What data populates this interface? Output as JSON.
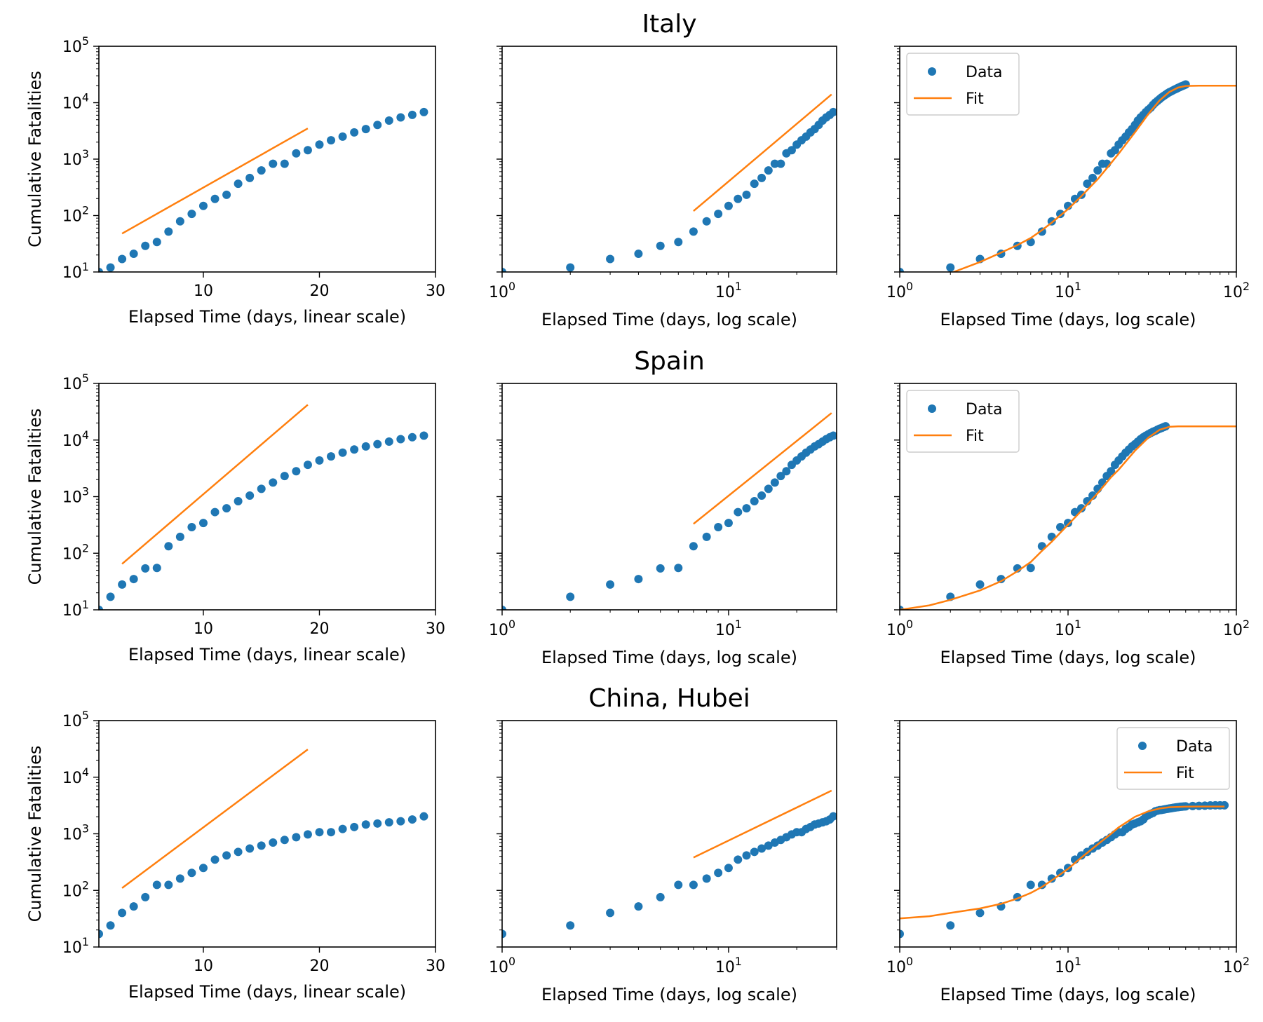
{
  "row_titles": [
    "Italy",
    "Spain",
    "China, Hubei"
  ],
  "labels": {
    "ylabel": "Cumulative Fatalities",
    "xlabel_linear": "Elapsed Time (days, linear scale)",
    "xlabel_log": "Elapsed Time (days, log scale)",
    "legend_data": "Data",
    "legend_fit": "Fit"
  },
  "colors": {
    "data": "#1f77b4",
    "fit": "#ff7f0e",
    "axis": "#000000",
    "legend_border": "#cccccc"
  },
  "chart_data": [
    {
      "country": "Italy",
      "days": [
        1,
        2,
        3,
        4,
        5,
        6,
        7,
        8,
        9,
        10,
        11,
        12,
        13,
        14,
        15,
        16,
        17,
        18,
        19,
        20,
        21,
        22,
        23,
        24,
        25,
        26,
        27,
        28,
        29
      ],
      "fatalities": [
        10,
        12,
        17,
        21,
        29,
        34,
        52,
        79,
        107,
        148,
        197,
        233,
        366,
        463,
        631,
        827,
        827,
        1266,
        1441,
        1809,
        2158,
        2503,
        2978,
        3405,
        4032,
        4825,
        5476,
        6077,
        6820
      ],
      "extended_days": [
        1,
        2,
        3,
        4,
        5,
        6,
        7,
        8,
        9,
        10,
        11,
        12,
        13,
        14,
        15,
        16,
        17,
        18,
        19,
        20,
        21,
        22,
        23,
        24,
        25,
        26,
        27,
        28,
        29,
        30,
        31,
        32,
        33,
        34,
        35,
        36,
        37,
        38,
        39,
        40,
        41,
        42,
        43,
        44,
        45,
        46,
        47,
        48,
        49,
        50
      ],
      "extended_fatalities": [
        10,
        12,
        17,
        21,
        29,
        34,
        52,
        79,
        107,
        148,
        197,
        233,
        366,
        463,
        631,
        827,
        827,
        1266,
        1441,
        1809,
        2158,
        2503,
        2978,
        3405,
        4032,
        4825,
        5476,
        6077,
        6820,
        7503,
        8165,
        9134,
        10023,
        10779,
        11591,
        12428,
        13155,
        13915,
        14681,
        15362,
        15887,
        16523,
        17127,
        17669,
        18279,
        18849,
        19468,
        19899,
        20465,
        21067
      ],
      "fit_line_linear": {
        "x": [
          3,
          19
        ],
        "y": [
          48,
          3500
        ]
      },
      "fit_line_log": {
        "x": [
          7,
          28.5
        ],
        "y": [
          120,
          14000
        ]
      },
      "fit_curve": {
        "x": [
          1,
          1.5,
          2,
          3,
          4,
          5,
          6,
          7,
          8,
          10,
          12,
          15,
          18,
          20,
          25,
          30,
          35,
          40,
          45,
          50,
          60,
          80,
          100
        ],
        "y": [
          6,
          7.5,
          9.5,
          15,
          22,
          30,
          40,
          55,
          75,
          130,
          220,
          440,
          850,
          1250,
          3000,
          6300,
          11000,
          15500,
          18500,
          19800,
          20000,
          20000,
          20000
        ]
      },
      "legend_position": "upper left"
    },
    {
      "country": "Spain",
      "days": [
        1,
        2,
        3,
        4,
        5,
        6,
        7,
        8,
        9,
        10,
        11,
        12,
        13,
        14,
        15,
        16,
        17,
        18,
        19,
        20,
        21,
        22,
        23,
        24,
        25,
        26,
        27,
        28,
        29
      ],
      "fatalities": [
        10,
        17,
        28,
        35,
        54,
        55,
        133,
        195,
        289,
        342,
        533,
        623,
        830,
        1043,
        1375,
        1772,
        2311,
        2808,
        3647,
        4365,
        5138,
        5982,
        6803,
        7716,
        8464,
        9387,
        10348,
        11198,
        11947
      ],
      "extended_days": [
        1,
        2,
        3,
        4,
        5,
        6,
        7,
        8,
        9,
        10,
        11,
        12,
        13,
        14,
        15,
        16,
        17,
        18,
        19,
        20,
        21,
        22,
        23,
        24,
        25,
        26,
        27,
        28,
        29,
        30,
        31,
        32,
        33,
        34,
        35,
        36,
        37,
        38
      ],
      "extended_fatalities": [
        10,
        17,
        28,
        35,
        54,
        55,
        133,
        195,
        289,
        342,
        533,
        623,
        830,
        1043,
        1375,
        1772,
        2311,
        2808,
        3647,
        4365,
        5138,
        5982,
        6803,
        7716,
        8464,
        9387,
        10348,
        11198,
        11947,
        12641,
        13341,
        14045,
        14555,
        15238,
        15843,
        16353,
        16972,
        17489
      ],
      "fit_line_linear": {
        "x": [
          3,
          19
        ],
        "y": [
          65,
          42000
        ]
      },
      "fit_line_log": {
        "x": [
          7,
          28.5
        ],
        "y": [
          330,
          30000
        ]
      },
      "fit_curve": {
        "x": [
          1,
          1.5,
          2,
          3,
          4,
          5,
          6,
          7,
          8,
          10,
          12,
          15,
          18,
          20,
          25,
          30,
          35,
          40,
          45,
          50,
          60,
          80,
          100
        ],
        "y": [
          10,
          12,
          15,
          22,
          32,
          48,
          70,
          110,
          160,
          320,
          560,
          1150,
          2200,
          3000,
          6500,
          11000,
          15200,
          17100,
          17400,
          17400,
          17400,
          17400,
          17400
        ]
      },
      "legend_position": "upper left"
    },
    {
      "country": "China, Hubei",
      "days": [
        1,
        2,
        3,
        4,
        5,
        6,
        7,
        8,
        9,
        10,
        11,
        12,
        13,
        14,
        15,
        16,
        17,
        18,
        19,
        20,
        21,
        22,
        23,
        24,
        25,
        26,
        27,
        28,
        29
      ],
      "fatalities": [
        17,
        24,
        40,
        52,
        76,
        125,
        125,
        162,
        204,
        249,
        350,
        414,
        479,
        549,
        618,
        699,
        780,
        871,
        974,
        1068,
        1068,
        1218,
        1318,
        1457,
        1520,
        1596,
        1665,
        1791,
        2029
      ],
      "extended_days": [
        1,
        2,
        3,
        4,
        5,
        6,
        7,
        8,
        9,
        10,
        11,
        12,
        13,
        14,
        15,
        16,
        17,
        18,
        19,
        20,
        21,
        22,
        23,
        24,
        25,
        26,
        27,
        28,
        29,
        30,
        31,
        32,
        33,
        34,
        35,
        36,
        37,
        38,
        39,
        40,
        41,
        42,
        43,
        44,
        45,
        46,
        47,
        48,
        49,
        50,
        55,
        60,
        65,
        70,
        75,
        80,
        85
      ],
      "extended_fatalities": [
        17,
        24,
        40,
        52,
        76,
        125,
        125,
        162,
        204,
        249,
        350,
        414,
        479,
        549,
        618,
        699,
        780,
        871,
        974,
        1068,
        1068,
        1218,
        1318,
        1457,
        1520,
        1596,
        1665,
        1791,
        2029,
        2144,
        2250,
        2346,
        2495,
        2563,
        2615,
        2641,
        2682,
        2727,
        2761,
        2803,
        2835,
        2871,
        2902,
        2931,
        2959,
        2986,
        3008,
        3024,
        3046,
        3056,
        3099,
        3122,
        3144,
        3169,
        3182,
        3182,
        3186
      ],
      "fit_line_linear": {
        "x": [
          3,
          19
        ],
        "y": [
          110,
          31000
        ]
      },
      "fit_line_log": {
        "x": [
          7,
          28.5
        ],
        "y": [
          380,
          5800
        ]
      },
      "fit_curve": {
        "x": [
          1,
          1.5,
          2,
          3,
          4,
          5,
          6,
          7,
          8,
          10,
          12,
          15,
          18,
          20,
          25,
          30,
          35,
          40,
          50,
          60,
          80,
          85
        ],
        "y": [
          32,
          35,
          40,
          48,
          58,
          72,
          90,
          115,
          150,
          240,
          380,
          650,
          1000,
          1300,
          2000,
          2500,
          2800,
          2950,
          3020,
          3030,
          3030,
          3030
        ]
      },
      "legend_position": "upper right"
    }
  ]
}
